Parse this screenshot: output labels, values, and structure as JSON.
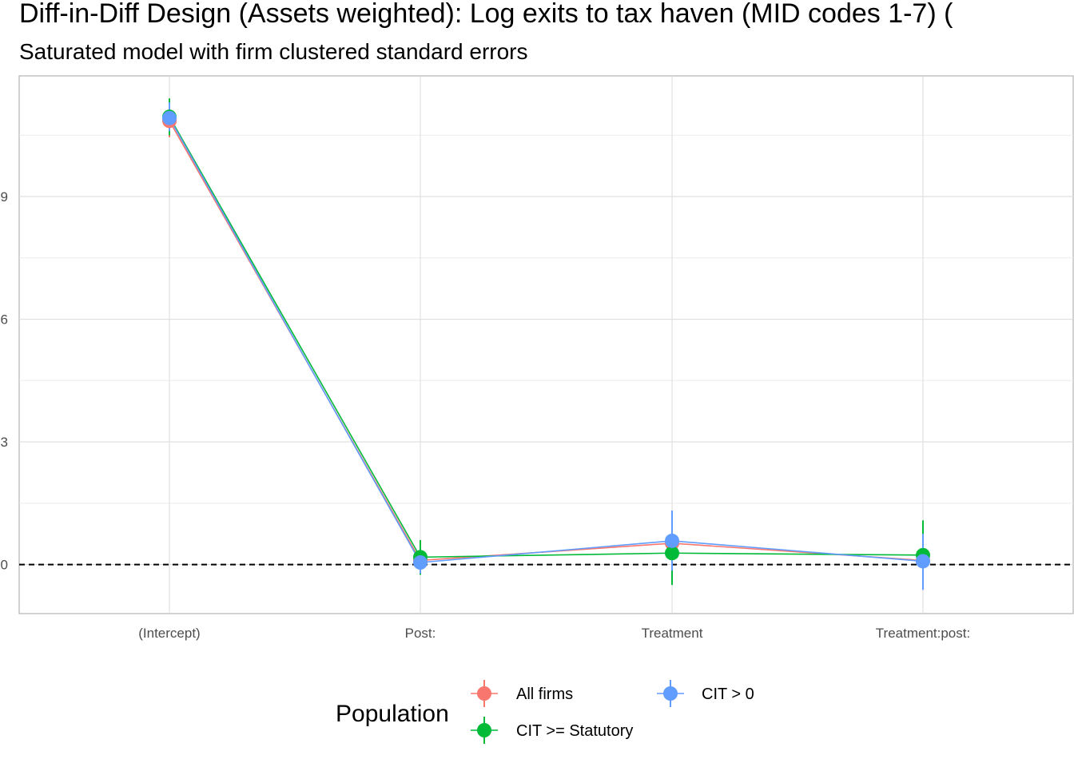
{
  "chart_data": {
    "type": "line",
    "title": "Diff-in-Diff Design (Assets weighted): Log exits to tax haven (MID codes 1-7)  (",
    "subtitle": "Saturated model with firm clustered standard errors",
    "xlabel": "",
    "ylabel": "",
    "categories": [
      "(Intercept)",
      "Post:",
      "Treatment",
      "Treatment:post:"
    ],
    "y_ticks": [
      0,
      3,
      6,
      9
    ],
    "ylim": [
      -1.2,
      11.95
    ],
    "grid": true,
    "reference_line": {
      "y": 0,
      "style": "dashed"
    },
    "legend": {
      "title": "Population",
      "position": "bottom"
    },
    "series": [
      {
        "name": "All firms",
        "color": "#F8766D",
        "values": [
          10.85,
          0.1,
          0.52,
          0.1
        ],
        "lower": [
          10.45,
          -0.15,
          0.25,
          -0.25
        ],
        "upper": [
          11.25,
          0.35,
          0.8,
          0.4
        ]
      },
      {
        "name": "CIT >= Statutory",
        "color": "#00BA38",
        "values": [
          10.95,
          0.18,
          0.28,
          0.23
        ],
        "lower": [
          10.5,
          -0.25,
          -0.5,
          -0.6
        ],
        "upper": [
          11.4,
          0.6,
          1.05,
          1.08
        ]
      },
      {
        "name": "CIT > 0",
        "color": "#619CFF",
        "values": [
          10.92,
          0.05,
          0.58,
          0.08
        ],
        "lower": [
          10.6,
          -0.22,
          -0.15,
          -0.62
        ],
        "upper": [
          11.3,
          0.32,
          1.32,
          0.75
        ]
      }
    ]
  }
}
